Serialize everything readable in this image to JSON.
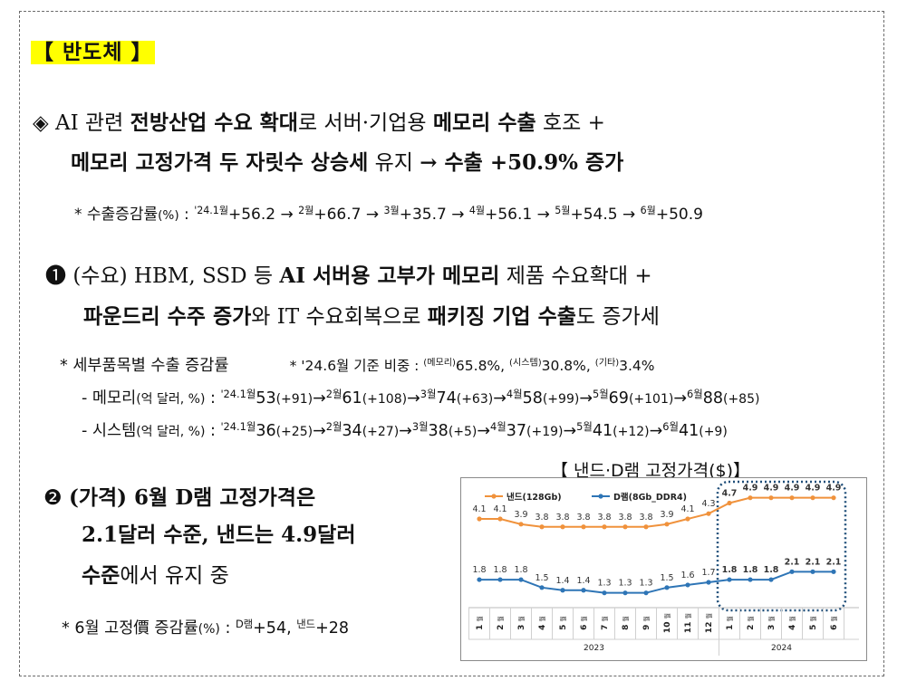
{
  "section": {
    "title": "【 반도체 】"
  },
  "headline": {
    "bullet": "◈",
    "p1": "AI 관련 ",
    "b1": "전방산업 수요 확대",
    "p2": "로 서버·기업용 ",
    "b2": "메모리 수출",
    "p3": " 호조 +",
    "b3": "메모리 고정가격 두 자릿수 상승세",
    "p4": " 유지 ",
    "b4": "→ 수출 +50.9% 증가"
  },
  "growth_note": {
    "prefix": "* 수출증감률",
    "unit": "(%)",
    "colon": " : ",
    "items": [
      {
        "m": "'24.1월",
        "v": "+56.2"
      },
      {
        "m": "2월",
        "v": "+66.7"
      },
      {
        "m": "3월",
        "v": "+35.7"
      },
      {
        "m": "4월",
        "v": "+56.1"
      },
      {
        "m": "5월",
        "v": "+54.5"
      },
      {
        "m": "6월",
        "v": "+50.9"
      }
    ]
  },
  "point1": {
    "mark": "❶",
    "p1": "(수요) HBM, SSD 등 ",
    "b1": "AI 서버용 고부가 메모리",
    "p2": " 제품 수요확대 +",
    "b2": "파운드리 수주 증가",
    "p3": "와 IT 수요회복으로 ",
    "b3": "패키징 기업 수출",
    "p4": "도 증가세"
  },
  "detail": {
    "title": "* 세부품목별 수출 증감률",
    "share_prefix": "* '24.6월 기준 비중 : ",
    "shares": [
      {
        "label": "(메모리)",
        "value": "65.8%,"
      },
      {
        "label": "(시스템)",
        "value": "30.8%,"
      },
      {
        "label": "(기타)",
        "value": "3.4%"
      }
    ],
    "memory": {
      "label": "- 메모리",
      "unit": "(억 달러, %)",
      "colon": " : ",
      "items": [
        {
          "m": "'24.1월",
          "v": "53",
          "c": "(+91)"
        },
        {
          "m": "2월",
          "v": "61",
          "c": "(+108)"
        },
        {
          "m": "3월",
          "v": "74",
          "c": "(+63)"
        },
        {
          "m": "4월",
          "v": "58",
          "c": "(+99)"
        },
        {
          "m": "5월",
          "v": "69",
          "c": "(+101)"
        },
        {
          "m": "6월",
          "v": "88",
          "c": "(+85)"
        }
      ]
    },
    "system": {
      "label": "- 시스템",
      "unit": "(억 달러, %)",
      "colon": " : ",
      "items": [
        {
          "m": "'24.1월",
          "v": "36",
          "c": "(+25)"
        },
        {
          "m": "2월",
          "v": "34",
          "c": "(+27)"
        },
        {
          "m": "3월",
          "v": "38",
          "c": "(+5)"
        },
        {
          "m": "4월",
          "v": "37",
          "c": "(+19)"
        },
        {
          "m": "5월",
          "v": "41",
          "c": "(+12)"
        },
        {
          "m": "6월",
          "v": "41",
          "c": "(+9)"
        }
      ]
    }
  },
  "point2": {
    "mark": "❷",
    "b1": "(가격) 6월 D램 고정가격은",
    "b2": "2.1달러 수준, 낸드는 4.9달러",
    "b3": "수준",
    "p1": "에서 유지 중"
  },
  "price_note": {
    "prefix": "* 6월 고정價 증감률",
    "unit": "(%)",
    "colon": " : ",
    "items": [
      {
        "m": "D램",
        "v": "+54,"
      },
      {
        "m": "낸드",
        "v": "+28"
      }
    ]
  },
  "chart_title": "【 낸드·D램 고정가격($)】",
  "chart_data": {
    "type": "line",
    "title": "【 낸드·D램 고정가격($)】",
    "month_suffix": "월",
    "categories": [
      "1",
      "2",
      "3",
      "4",
      "5",
      "6",
      "7",
      "8",
      "9",
      "10",
      "11",
      "12",
      "1",
      "2",
      "3",
      "4",
      "5",
      "6"
    ],
    "year_labels": [
      "2023",
      "2024"
    ],
    "series": [
      {
        "name": "낸드(128Gb)",
        "color": "#f0923c",
        "values": [
          4.1,
          4.1,
          3.9,
          3.8,
          3.8,
          3.8,
          3.8,
          3.8,
          3.8,
          3.9,
          4.1,
          4.3,
          4.7,
          4.9,
          4.9,
          4.9,
          4.9,
          4.9
        ]
      },
      {
        "name": "D램(8Gb_DDR4)",
        "color": "#2e75b6",
        "values": [
          1.8,
          1.8,
          1.8,
          1.5,
          1.4,
          1.4,
          1.3,
          1.3,
          1.3,
          1.5,
          1.6,
          1.7,
          1.8,
          1.8,
          1.8,
          2.1,
          2.1,
          2.1
        ]
      }
    ],
    "ylim": [
      0.5,
      5.3
    ],
    "grid": false,
    "legend": "top-left",
    "highlight_range": [
      "2024 1월",
      "2024 6월"
    ]
  }
}
